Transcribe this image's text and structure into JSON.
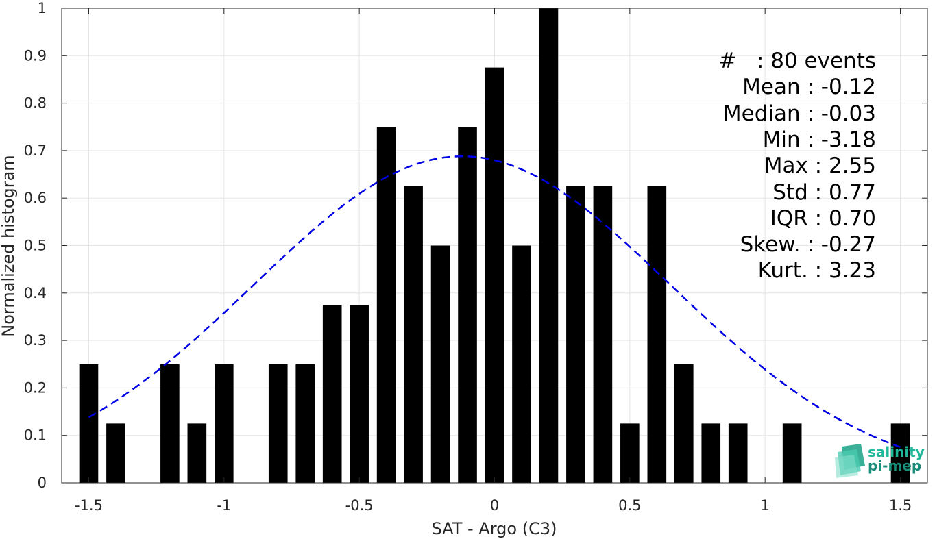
{
  "chart_data": {
    "type": "bar",
    "xlabel": "SAT - Argo (C3)",
    "ylabel": "Normalized histogram",
    "xlim": [
      -1.6,
      1.6
    ],
    "ylim": [
      0,
      1
    ],
    "grid": true,
    "xticks": [
      "-1.5",
      "-1",
      "-0.5",
      "0",
      "0.5",
      "1",
      "1.5"
    ],
    "xtick_values": [
      -1.5,
      -1,
      -0.5,
      0,
      0.5,
      1,
      1.5
    ],
    "yticks": [
      "0",
      "0.1",
      "0.2",
      "0.3",
      "0.4",
      "0.5",
      "0.6",
      "0.7",
      "0.8",
      "0.9",
      "1"
    ],
    "ytick_values": [
      0,
      0.1,
      0.2,
      0.3,
      0.4,
      0.5,
      0.6,
      0.7,
      0.8,
      0.9,
      1
    ],
    "bar_color": "#000000",
    "bin_width": 0.07,
    "bins": [
      {
        "x": -1.5,
        "y": 0.25
      },
      {
        "x": -1.4,
        "y": 0.125
      },
      {
        "x": -1.2,
        "y": 0.25
      },
      {
        "x": -1.1,
        "y": 0.125
      },
      {
        "x": -1.0,
        "y": 0.25
      },
      {
        "x": -0.8,
        "y": 0.25
      },
      {
        "x": -0.7,
        "y": 0.25
      },
      {
        "x": -0.6,
        "y": 0.375
      },
      {
        "x": -0.5,
        "y": 0.375
      },
      {
        "x": -0.4,
        "y": 0.75
      },
      {
        "x": -0.3,
        "y": 0.625
      },
      {
        "x": -0.2,
        "y": 0.5
      },
      {
        "x": -0.1,
        "y": 0.75
      },
      {
        "x": 0.0,
        "y": 0.875
      },
      {
        "x": 0.1,
        "y": 0.5
      },
      {
        "x": 0.2,
        "y": 1.0
      },
      {
        "x": 0.3,
        "y": 0.625
      },
      {
        "x": 0.4,
        "y": 0.625
      },
      {
        "x": 0.5,
        "y": 0.125
      },
      {
        "x": 0.6,
        "y": 0.625
      },
      {
        "x": 0.7,
        "y": 0.25
      },
      {
        "x": 0.8,
        "y": 0.125
      },
      {
        "x": 0.9,
        "y": 0.125
      },
      {
        "x": 1.1,
        "y": 0.125
      },
      {
        "x": 1.5,
        "y": 0.125
      }
    ],
    "fit_curve": {
      "color": "#0000e6",
      "style": "dashed",
      "mean": -0.12,
      "std": 0.77,
      "x_range": [
        -1.5,
        1.5
      ],
      "peak": 0.688
    },
    "annotations": [
      {
        "label": "#  ",
        "value": ": 80 events"
      },
      {
        "label": "Mean",
        "value": ": -0.12"
      },
      {
        "label": "Median",
        "value": ": -0.03"
      },
      {
        "label": "Min",
        "value": ": -3.18"
      },
      {
        "label": "Max",
        "value": ": 2.55"
      },
      {
        "label": "Std",
        "value": ": 0.77"
      },
      {
        "label": "IQR",
        "value": ": 0.70"
      },
      {
        "label": "Skew.",
        "value": ": -0.27"
      },
      {
        "label": "Kurt.",
        "value": ": 3.23"
      }
    ]
  },
  "logo": {
    "line1": "salinity",
    "line2": "pi-mep",
    "color1": "#1fb89a",
    "color2": "#1a8d7a"
  }
}
